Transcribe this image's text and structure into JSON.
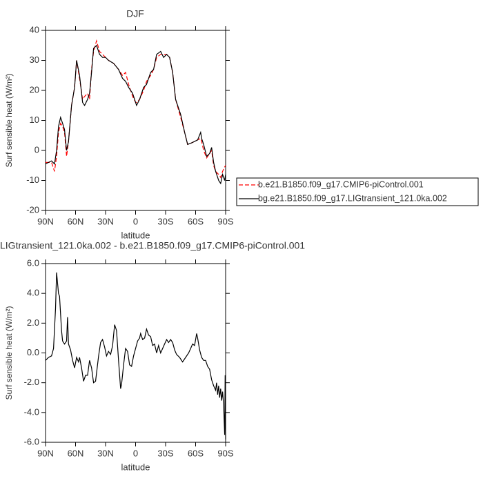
{
  "chart_data": [
    {
      "type": "line",
      "title": "DJF",
      "xlabel": "latitude",
      "ylabel": "Surf sensible heat (W/m²)",
      "x": [
        90,
        87,
        84,
        81,
        79,
        77,
        75,
        73,
        71,
        69,
        67,
        64,
        61,
        59,
        56,
        53,
        51,
        48,
        46,
        44,
        42,
        39,
        36,
        33,
        30,
        27,
        22,
        17,
        13,
        10,
        7,
        3,
        0,
        -1,
        -4,
        -8,
        -11,
        -15,
        -18,
        -21,
        -25,
        -28,
        -31,
        -34,
        -37,
        -40,
        -45,
        -49,
        -52,
        -56,
        -62,
        -65,
        -66,
        -68,
        -71,
        -74,
        -76,
        -78,
        -80,
        -83,
        -85,
        -87,
        -89,
        -90
      ],
      "series": [
        {
          "name": "b.e21.B1850.f09_g17.CMIP6-piControl.001",
          "color": "#ff0000",
          "line_style": "dashed",
          "values": [
            -4,
            -4,
            -4,
            -7,
            -2,
            6,
            9,
            8,
            6,
            -2,
            3,
            15,
            21,
            30,
            24,
            17,
            18,
            19,
            17,
            27,
            33,
            36.5,
            33,
            32,
            31,
            30,
            29,
            27,
            25,
            26,
            22,
            18,
            16,
            16,
            17,
            20,
            23,
            25,
            27,
            31,
            32,
            32,
            32,
            31,
            26,
            17,
            11,
            6,
            2,
            2.5,
            3.5,
            4,
            3,
            0,
            -2.5,
            -1,
            0,
            -5,
            -7,
            -8,
            -9,
            -7,
            -5.5,
            -5
          ]
        },
        {
          "name": "bg.e21.B1850.f09_g17.LIGtransient_121.0ka.002",
          "color": "#000000",
          "line_style": "solid",
          "values": [
            -4.5,
            -4,
            -3.5,
            -4.5,
            0,
            8,
            11,
            9,
            7,
            0,
            3,
            15,
            21,
            30,
            25,
            16,
            15,
            17,
            19,
            26,
            34,
            35,
            32,
            31,
            31,
            30,
            29,
            27,
            24,
            23,
            21,
            19,
            16,
            15,
            17,
            21,
            22,
            26,
            27,
            32,
            33,
            31,
            32,
            31,
            26,
            17,
            12,
            6,
            2,
            2.5,
            3.5,
            6,
            4,
            2,
            -2,
            -1,
            1,
            -4,
            -7,
            -10,
            -11,
            -8,
            -10,
            -8
          ]
        }
      ],
      "xlim": [
        90,
        -90
      ],
      "xticks": [
        {
          "value": 90,
          "label": "90N"
        },
        {
          "value": 60,
          "label": "60N"
        },
        {
          "value": 30,
          "label": "30N"
        },
        0,
        {
          "value": -30,
          "label": "30S"
        },
        {
          "value": -60,
          "label": "60S"
        },
        {
          "value": -90,
          "label": "90S"
        }
      ],
      "ylim": [
        -20,
        40
      ],
      "yticks": [
        -20,
        -10,
        0,
        10,
        20,
        30,
        40
      ],
      "grid": false,
      "legend": "right"
    },
    {
      "type": "line",
      "title": "LIGtransient_121.0ka.002 - b.e21.B1850.f09_g17.CMIP6-piControl.001",
      "xlabel": "latitude",
      "ylabel": "Surf sensible heat (W/m²)",
      "x": [
        90,
        87,
        84,
        82,
        80,
        79,
        77,
        76,
        74,
        73,
        71,
        69,
        68,
        67,
        65,
        63,
        61,
        59,
        57,
        56,
        54,
        52,
        50,
        48,
        46,
        44,
        42,
        40,
        37,
        35,
        33,
        31,
        29,
        27,
        25,
        23,
        21,
        19,
        17,
        15,
        14,
        12,
        10,
        8,
        6,
        4,
        2,
        0,
        -2,
        -4,
        -5,
        -7,
        -9,
        -11,
        -13,
        -15,
        -17,
        -19,
        -21,
        -23,
        -25,
        -27,
        -29,
        -31,
        -33,
        -35,
        -37,
        -39,
        -41,
        -44,
        -47,
        -50,
        -53,
        -55,
        -57,
        -59,
        -61,
        -62,
        -64,
        -66,
        -68,
        -70,
        -72,
        -74,
        -76,
        -78,
        -80,
        -81,
        -82,
        -83,
        -84,
        -85,
        -86,
        -87,
        -88,
        -89,
        -89.5,
        -90
      ],
      "values": [
        -0.5,
        -0.3,
        -0.2,
        0.3,
        3,
        5.4,
        4,
        3.8,
        1.5,
        0.8,
        0.6,
        0.8,
        2.4,
        0.6,
        0.2,
        -0.5,
        -1.0,
        -0.3,
        -0.6,
        -0.3,
        -1.0,
        -1.9,
        -1.5,
        -1.5,
        -0.5,
        -1.0,
        -2.0,
        -1.9,
        -0.2,
        0.7,
        0.9,
        0.4,
        -0.2,
        0.1,
        -0.1,
        0.5,
        1.9,
        1.5,
        -0.5,
        -2.4,
        -2.1,
        -0.8,
        0.3,
        0.1,
        -0.8,
        -0.9,
        -0.2,
        0.3,
        0.8,
        1.0,
        1.3,
        0.9,
        1.0,
        1.6,
        1.2,
        1.1,
        0.5,
        0.6,
        0.0,
        0.5,
        0.0,
        0.3,
        0.6,
        0.9,
        0.7,
        0.9,
        0.7,
        0.2,
        -0.1,
        -0.3,
        -0.6,
        -0.3,
        0.0,
        0.3,
        0.6,
        0.5,
        1.3,
        1.0,
        0.2,
        -0.3,
        -0.5,
        -0.5,
        -0.9,
        -1.1,
        -1.8,
        -2.2,
        -2.5,
        -2.0,
        -2.8,
        -2.2,
        -3.0,
        -2.4,
        -3.2,
        -2.6,
        -3.5,
        -5.5,
        -1.5,
        -5.8
      ],
      "color": "#000000",
      "line_style": "solid",
      "xlim": [
        90,
        -90
      ],
      "xticks": [
        {
          "value": 90,
          "label": "90N"
        },
        {
          "value": 60,
          "label": "60N"
        },
        {
          "value": 30,
          "label": "30N"
        },
        0,
        {
          "value": -30,
          "label": "30S"
        },
        {
          "value": -60,
          "label": "60S"
        },
        {
          "value": -90,
          "label": "90S"
        }
      ],
      "ylim": [
        -6,
        6
      ],
      "yticks": [
        {
          "value": -6,
          "label": "-6.0"
        },
        {
          "value": -4,
          "label": "-4.0"
        },
        {
          "value": -2,
          "label": "-2.0"
        },
        {
          "value": 0,
          "label": "0.0"
        },
        {
          "value": 2,
          "label": "2.0"
        },
        {
          "value": 4,
          "label": "4.0"
        },
        {
          "value": 6,
          "label": "6.0"
        }
      ],
      "grid": false
    }
  ]
}
